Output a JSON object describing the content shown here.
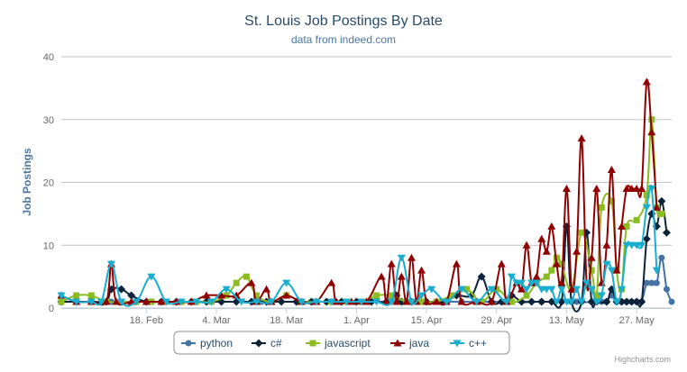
{
  "chart_data": {
    "type": "line",
    "title": "St. Louis Job Postings By Date",
    "subtitle": "data from indeed.com",
    "ylabel": "Job Postings",
    "xlabel": "",
    "ylim": [
      0,
      40
    ],
    "yticks": [
      0,
      10,
      20,
      30,
      40
    ],
    "xlim": [
      0,
      122
    ],
    "xticks": [
      {
        "day": 17,
        "label": "18. Feb"
      },
      {
        "day": 31,
        "label": "4. Mar"
      },
      {
        "day": 45,
        "label": "18. Mar"
      },
      {
        "day": 59,
        "label": "1. Apr"
      },
      {
        "day": 73,
        "label": "15. Apr"
      },
      {
        "day": 87,
        "label": "29. Apr"
      },
      {
        "day": 101,
        "label": "13. May"
      },
      {
        "day": 115,
        "label": "27. May"
      }
    ],
    "grid": true,
    "legend_position": "bottom-center",
    "credits": "Highcharts.com",
    "series": [
      {
        "name": "python",
        "color": "#4572A7",
        "marker": "circle",
        "points": [
          [
            0,
            1
          ],
          [
            10,
            1
          ],
          [
            20,
            1
          ],
          [
            30,
            1
          ],
          [
            40,
            1
          ],
          [
            50,
            1
          ],
          [
            60,
            1
          ],
          [
            70,
            1
          ],
          [
            80,
            1
          ],
          [
            88,
            1
          ],
          [
            96,
            1
          ],
          [
            100,
            1
          ],
          [
            103,
            1
          ],
          [
            106,
            1
          ],
          [
            107,
            2
          ],
          [
            108,
            1
          ],
          [
            109,
            1
          ],
          [
            110,
            2
          ],
          [
            111,
            1
          ],
          [
            112,
            1
          ],
          [
            113,
            1
          ],
          [
            114,
            1
          ],
          [
            115,
            1
          ],
          [
            116,
            1
          ],
          [
            117,
            4
          ],
          [
            118,
            4
          ],
          [
            119,
            4
          ],
          [
            120,
            8
          ],
          [
            121,
            3
          ],
          [
            122,
            1
          ]
        ]
      },
      {
        "name": "c#",
        "color": "#0d233a",
        "marker": "diamond",
        "points": [
          [
            0,
            1
          ],
          [
            3,
            1
          ],
          [
            6,
            1
          ],
          [
            9,
            1
          ],
          [
            10,
            3
          ],
          [
            12,
            3
          ],
          [
            14,
            2
          ],
          [
            17,
            1
          ],
          [
            20,
            1
          ],
          [
            23,
            1
          ],
          [
            26,
            1
          ],
          [
            29,
            1
          ],
          [
            32,
            1
          ],
          [
            35,
            1
          ],
          [
            38,
            1
          ],
          [
            41,
            1
          ],
          [
            44,
            1
          ],
          [
            47,
            1
          ],
          [
            50,
            1
          ],
          [
            53,
            1
          ],
          [
            56,
            1
          ],
          [
            59,
            1
          ],
          [
            62,
            1
          ],
          [
            65,
            1
          ],
          [
            67,
            2
          ],
          [
            68,
            1
          ],
          [
            70,
            1
          ],
          [
            73,
            1
          ],
          [
            76,
            1
          ],
          [
            79,
            2
          ],
          [
            82,
            2
          ],
          [
            84,
            5
          ],
          [
            86,
            1
          ],
          [
            88,
            1
          ],
          [
            90,
            2
          ],
          [
            92,
            1
          ],
          [
            94,
            1
          ],
          [
            96,
            1
          ],
          [
            98,
            1
          ],
          [
            100,
            1
          ],
          [
            101,
            13
          ],
          [
            102,
            1
          ],
          [
            104,
            1
          ],
          [
            105,
            12
          ],
          [
            106,
            1
          ],
          [
            107,
            1
          ],
          [
            109,
            1
          ],
          [
            110,
            3
          ],
          [
            111,
            1
          ],
          [
            112,
            1
          ],
          [
            113,
            1
          ],
          [
            114,
            1
          ],
          [
            115,
            1
          ],
          [
            116,
            1
          ],
          [
            117,
            11
          ],
          [
            118,
            15
          ],
          [
            119,
            13
          ],
          [
            120,
            17
          ],
          [
            121,
            12
          ]
        ]
      },
      {
        "name": "javascript",
        "color": "#8bbc21",
        "marker": "square",
        "points": [
          [
            0,
            1
          ],
          [
            3,
            2
          ],
          [
            6,
            2
          ],
          [
            9,
            1
          ],
          [
            12,
            1
          ],
          [
            15,
            1
          ],
          [
            18,
            1
          ],
          [
            21,
            1
          ],
          [
            24,
            1
          ],
          [
            27,
            1
          ],
          [
            30,
            1
          ],
          [
            33,
            2
          ],
          [
            35,
            4
          ],
          [
            37,
            5
          ],
          [
            39,
            2
          ],
          [
            42,
            1
          ],
          [
            45,
            2
          ],
          [
            48,
            1
          ],
          [
            51,
            1
          ],
          [
            54,
            1
          ],
          [
            57,
            1
          ],
          [
            60,
            1
          ],
          [
            63,
            2
          ],
          [
            66,
            2
          ],
          [
            69,
            1
          ],
          [
            72,
            1
          ],
          [
            75,
            1
          ],
          [
            78,
            2
          ],
          [
            81,
            3
          ],
          [
            84,
            1
          ],
          [
            87,
            3
          ],
          [
            90,
            1
          ],
          [
            93,
            2
          ],
          [
            95,
            4
          ],
          [
            97,
            5
          ],
          [
            98,
            6
          ],
          [
            99,
            8
          ],
          [
            100,
            7
          ],
          [
            102,
            3
          ],
          [
            104,
            12
          ],
          [
            106,
            6
          ],
          [
            107,
            2
          ],
          [
            108,
            16
          ],
          [
            110,
            17
          ],
          [
            111,
            6
          ],
          [
            112,
            3
          ],
          [
            113,
            13
          ],
          [
            115,
            14
          ],
          [
            117,
            18
          ],
          [
            118,
            30
          ],
          [
            119,
            16
          ],
          [
            120,
            15
          ]
        ]
      },
      {
        "name": "java",
        "color": "#910000",
        "marker": "triangle",
        "points": [
          [
            0,
            2
          ],
          [
            3,
            1
          ],
          [
            6,
            1
          ],
          [
            9,
            1
          ],
          [
            10,
            7
          ],
          [
            11,
            1
          ],
          [
            14,
            1
          ],
          [
            17,
            1
          ],
          [
            20,
            1
          ],
          [
            23,
            1
          ],
          [
            26,
            1
          ],
          [
            29,
            2
          ],
          [
            32,
            2
          ],
          [
            35,
            2
          ],
          [
            38,
            4
          ],
          [
            39,
            1
          ],
          [
            41,
            3
          ],
          [
            42,
            1
          ],
          [
            45,
            2
          ],
          [
            48,
            1
          ],
          [
            51,
            1
          ],
          [
            54,
            4
          ],
          [
            55,
            1
          ],
          [
            58,
            1
          ],
          [
            61,
            1
          ],
          [
            64,
            5
          ],
          [
            65,
            1
          ],
          [
            66,
            7
          ],
          [
            67,
            1
          ],
          [
            68,
            5
          ],
          [
            69,
            1
          ],
          [
            70,
            8
          ],
          [
            71,
            1
          ],
          [
            72,
            6
          ],
          [
            73,
            1
          ],
          [
            75,
            1
          ],
          [
            77,
            1
          ],
          [
            79,
            7
          ],
          [
            80,
            1
          ],
          [
            83,
            1
          ],
          [
            86,
            1
          ],
          [
            88,
            7
          ],
          [
            89,
            1
          ],
          [
            91,
            4
          ],
          [
            92,
            3
          ],
          [
            93,
            10
          ],
          [
            94,
            4
          ],
          [
            95,
            5
          ],
          [
            96,
            11
          ],
          [
            97,
            9
          ],
          [
            98,
            13
          ],
          [
            99,
            7
          ],
          [
            100,
            4
          ],
          [
            101,
            19
          ],
          [
            102,
            3
          ],
          [
            103,
            9
          ],
          [
            104,
            27
          ],
          [
            105,
            4
          ],
          [
            106,
            8
          ],
          [
            107,
            19
          ],
          [
            108,
            4
          ],
          [
            109,
            10
          ],
          [
            110,
            22
          ],
          [
            111,
            6
          ],
          [
            112,
            13
          ],
          [
            113,
            19
          ],
          [
            114,
            19
          ],
          [
            115,
            19
          ],
          [
            116,
            19
          ],
          [
            117,
            36
          ],
          [
            118,
            28
          ],
          [
            119,
            16
          ]
        ]
      },
      {
        "name": "c++",
        "color": "#1aadce",
        "marker": "triangle-down",
        "points": [
          [
            0,
            2
          ],
          [
            3,
            1
          ],
          [
            6,
            1
          ],
          [
            8,
            1
          ],
          [
            10,
            7
          ],
          [
            12,
            1
          ],
          [
            15,
            1
          ],
          [
            18,
            5
          ],
          [
            21,
            1
          ],
          [
            24,
            1
          ],
          [
            27,
            1
          ],
          [
            30,
            1
          ],
          [
            33,
            3
          ],
          [
            36,
            1
          ],
          [
            39,
            1
          ],
          [
            42,
            1
          ],
          [
            45,
            4
          ],
          [
            48,
            1
          ],
          [
            51,
            1
          ],
          [
            54,
            1
          ],
          [
            57,
            1
          ],
          [
            60,
            1
          ],
          [
            63,
            1
          ],
          [
            66,
            1
          ],
          [
            68,
            8
          ],
          [
            70,
            1
          ],
          [
            72,
            2
          ],
          [
            74,
            3
          ],
          [
            77,
            1
          ],
          [
            80,
            3
          ],
          [
            83,
            1
          ],
          [
            86,
            3
          ],
          [
            89,
            1
          ],
          [
            90,
            5
          ],
          [
            91,
            4
          ],
          [
            92,
            4
          ],
          [
            93,
            3
          ],
          [
            94,
            4
          ],
          [
            95,
            4
          ],
          [
            96,
            3
          ],
          [
            97,
            3
          ],
          [
            98,
            3
          ],
          [
            99,
            1
          ],
          [
            100,
            3
          ],
          [
            101,
            1
          ],
          [
            102,
            1
          ],
          [
            103,
            3
          ],
          [
            104,
            1
          ],
          [
            105,
            4
          ],
          [
            106,
            3
          ],
          [
            107,
            1
          ],
          [
            108,
            2
          ],
          [
            109,
            7
          ],
          [
            110,
            6
          ],
          [
            111,
            1
          ],
          [
            112,
            3
          ],
          [
            113,
            10
          ],
          [
            114,
            10
          ],
          [
            115,
            10
          ],
          [
            116,
            10
          ],
          [
            117,
            16
          ],
          [
            118,
            19
          ],
          [
            119,
            6
          ]
        ]
      }
    ]
  }
}
